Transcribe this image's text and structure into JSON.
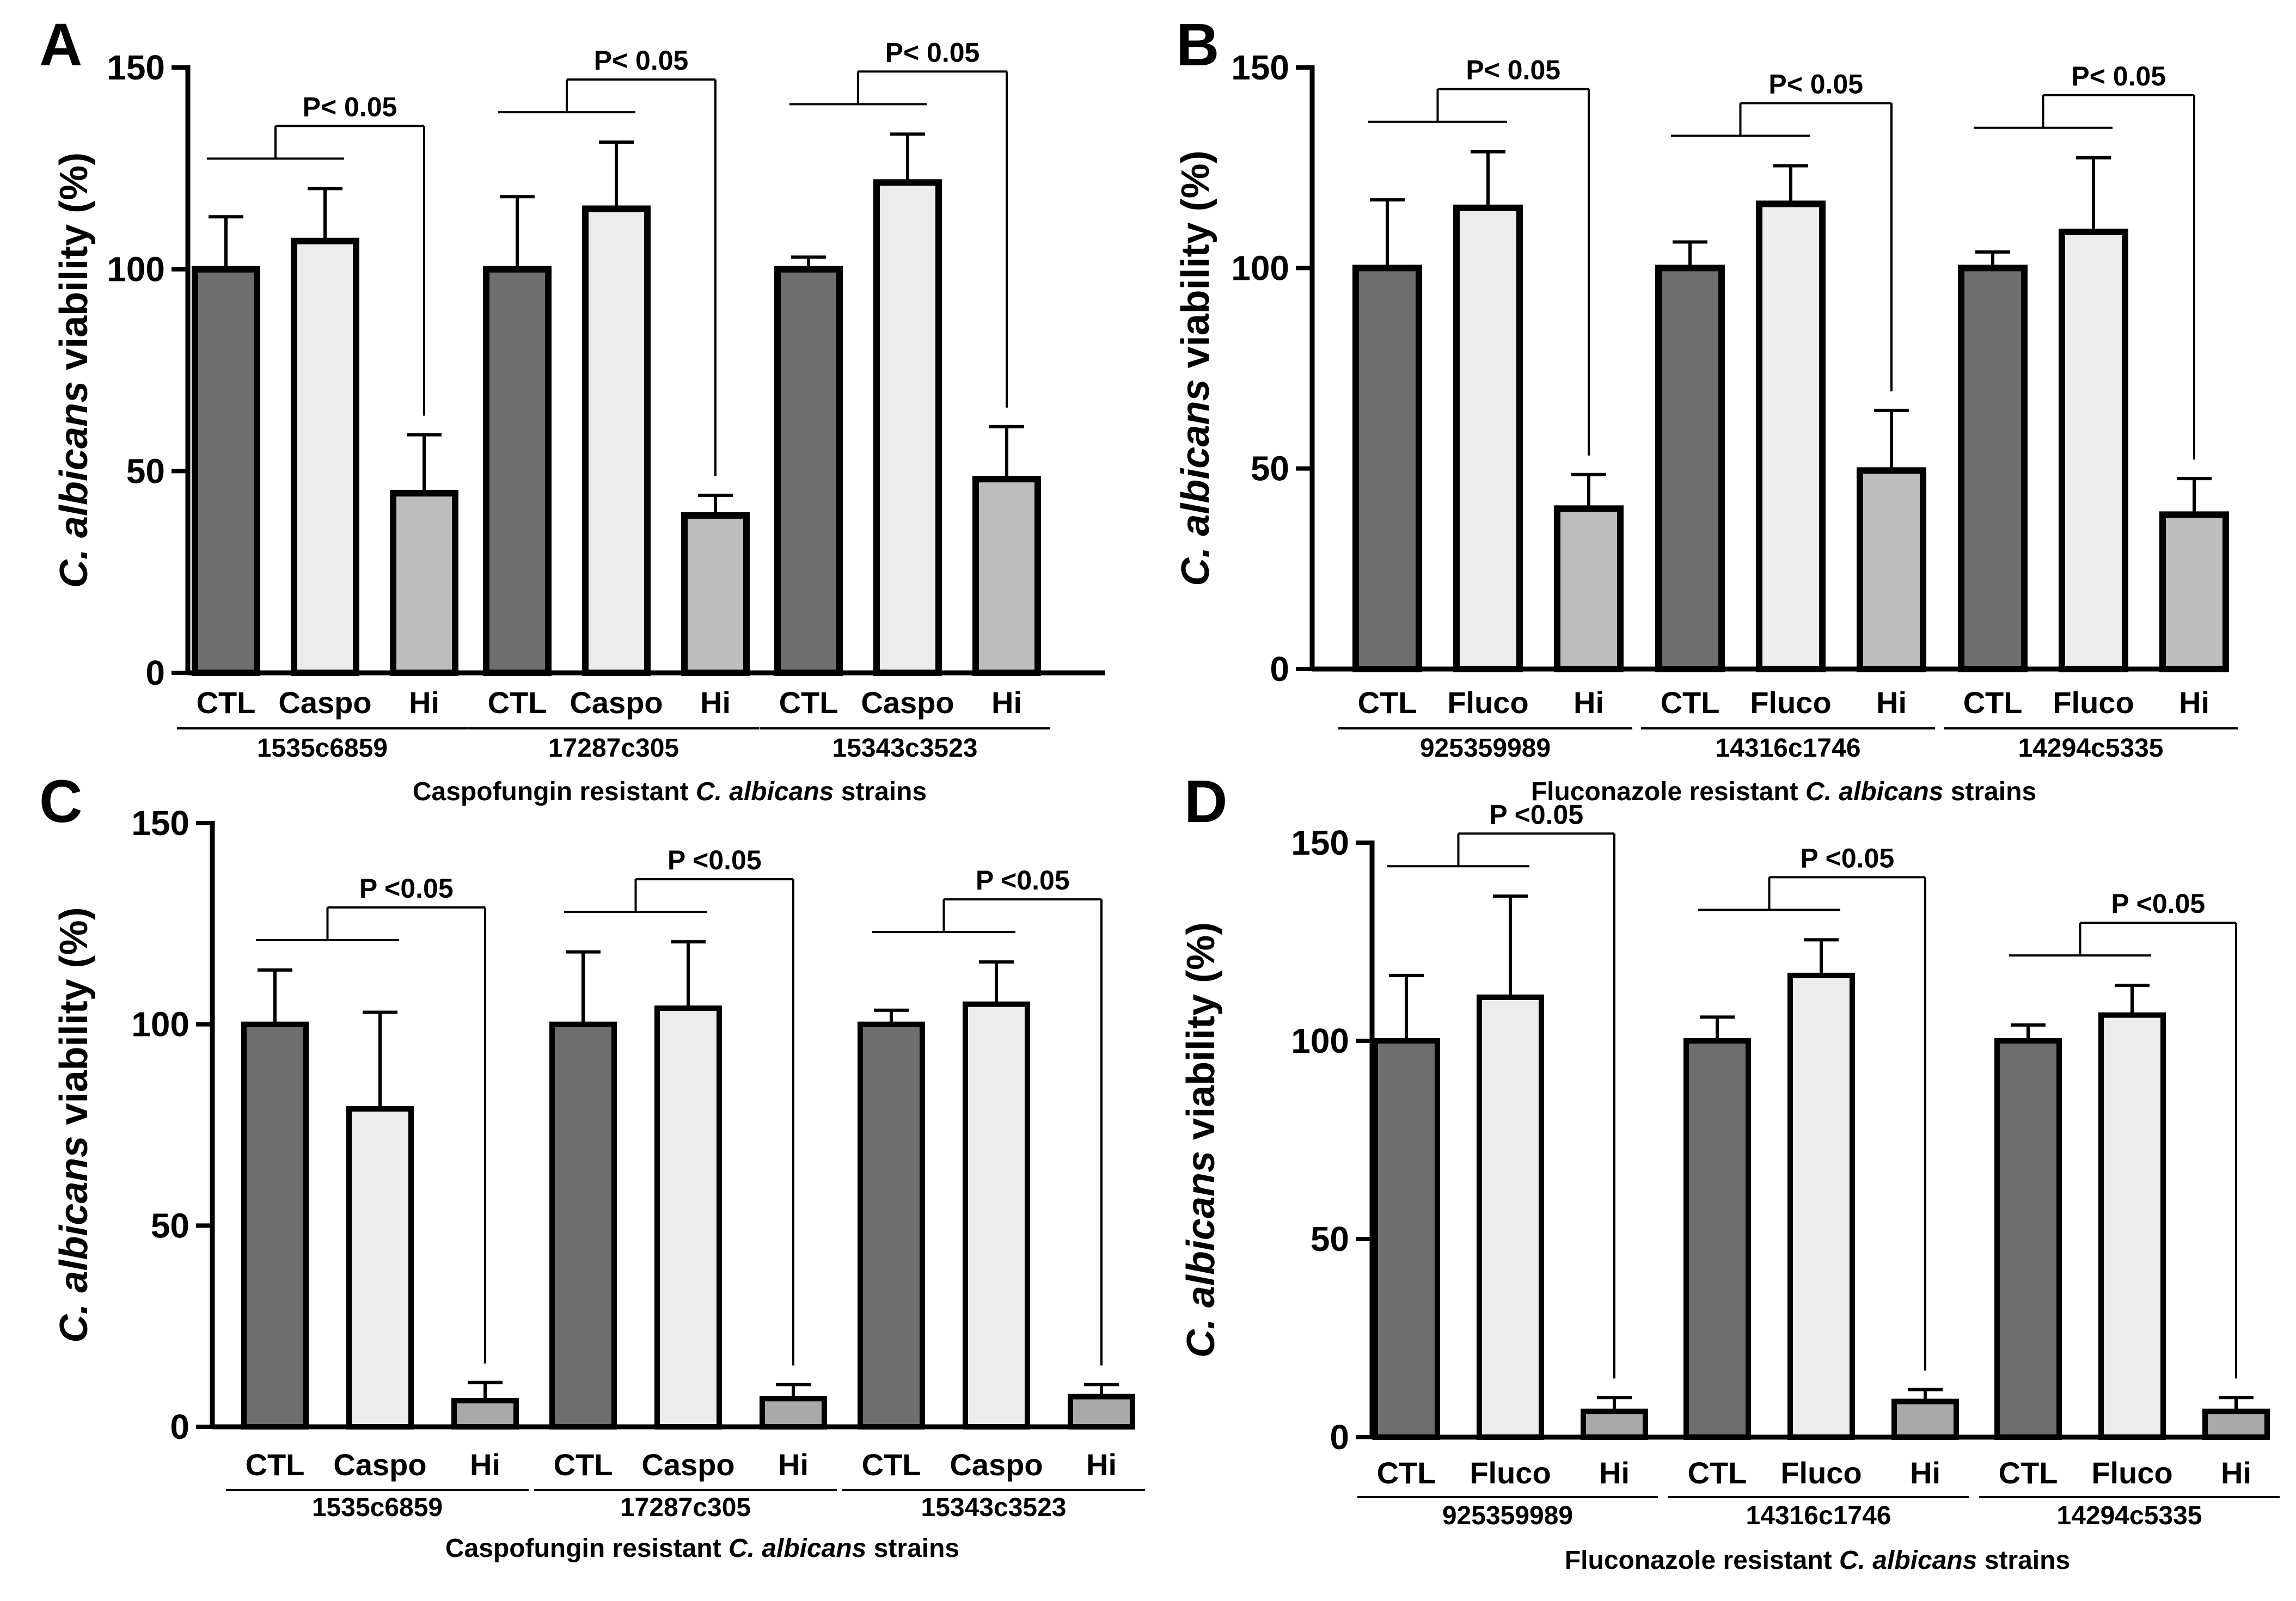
{
  "colors": {
    "ctl": "#6e6e6e",
    "treat": "#ececec",
    "hi": "#bdbdbd",
    "hi_cd": "#a9a9a9",
    "stroke": "#000000"
  },
  "chart_data": [
    {
      "panel": "A",
      "type": "bar",
      "ylabel": "C. albicans viability (%)",
      "ylim": [
        0,
        150
      ],
      "yticks": [
        "0",
        "50",
        "100",
        "150"
      ],
      "xlabel": "Caspofungin resistant C. albicans strains",
      "categories": [
        "CTL",
        "Caspo",
        "Hi"
      ],
      "groups": [
        {
          "name": "1535c6859",
          "values": [
            100,
            107,
            44.5
          ],
          "errors": [
            13,
            13,
            14.5
          ],
          "pvalue": "P< 0.05"
        },
        {
          "name": "17287c305",
          "values": [
            100,
            115,
            39
          ],
          "errors": [
            18,
            16.5,
            5
          ],
          "pvalue": "P< 0.05"
        },
        {
          "name": "15343c3523",
          "values": [
            100,
            121.5,
            48
          ],
          "errors": [
            3,
            12,
            13
          ],
          "pvalue": "P< 0.05"
        }
      ]
    },
    {
      "panel": "B",
      "type": "bar",
      "ylabel": "C. albicans viability (%)",
      "ylim": [
        0,
        150
      ],
      "yticks": [
        "0",
        "50",
        "100",
        "150"
      ],
      "xlabel": "Fluconazole resistant C. albicans strains",
      "categories": [
        "CTL",
        "Fluco",
        "Hi"
      ],
      "groups": [
        {
          "name": "925359989",
          "values": [
            100,
            115,
            40
          ],
          "errors": [
            17,
            14,
            8.5
          ],
          "pvalue": "P< 0.05"
        },
        {
          "name": "14316c1746",
          "values": [
            100,
            116,
            49.5
          ],
          "errors": [
            6.5,
            9.5,
            15
          ],
          "pvalue": "P< 0.05"
        },
        {
          "name": "14294c5335",
          "values": [
            100,
            109,
            38.5
          ],
          "errors": [
            4,
            18.5,
            9
          ],
          "pvalue": "P< 0.05"
        }
      ]
    },
    {
      "panel": "C",
      "type": "bar",
      "ylabel": "C. albicans viability (%)",
      "ylim": [
        0,
        150
      ],
      "yticks": [
        "0",
        "50",
        "100",
        "150"
      ],
      "xlabel": "Caspofungin resistant C. albicans strains",
      "categories": [
        "CTL",
        "Caspo",
        "Hi"
      ],
      "groups": [
        {
          "name": "1535c6859",
          "values": [
            100,
            79,
            6.5
          ],
          "errors": [
            13.5,
            24,
            4.5
          ],
          "pvalue": "P <0.05"
        },
        {
          "name": "17287c305",
          "values": [
            100,
            104,
            7
          ],
          "errors": [
            18,
            16.5,
            3.5
          ],
          "pvalue": "P <0.05"
        },
        {
          "name": "15343c3523",
          "values": [
            100,
            105,
            7.5
          ],
          "errors": [
            3.5,
            10.5,
            3
          ],
          "pvalue": "P <0.05"
        }
      ]
    },
    {
      "panel": "D",
      "type": "bar",
      "ylabel": "C. albicans viability (%)",
      "ylim": [
        0,
        150
      ],
      "yticks": [
        "0",
        "50",
        "100",
        "150"
      ],
      "xlabel": "Fluconazole resistant C. albicans strains",
      "categories": [
        "CTL",
        "Fluco",
        "Hi"
      ],
      "groups": [
        {
          "name": "925359989",
          "values": [
            100,
            111,
            6.5
          ],
          "errors": [
            16.5,
            25.5,
            3.5
          ],
          "pvalue": "P <0.05"
        },
        {
          "name": "14316c1746",
          "values": [
            100,
            116.5,
            9
          ],
          "errors": [
            6,
            9,
            3
          ],
          "pvalue": "P <0.05"
        },
        {
          "name": "14294c5335",
          "values": [
            100,
            106.5,
            6.5
          ],
          "errors": [
            4,
            7.5,
            3.5
          ],
          "pvalue": "P <0.05"
        }
      ]
    }
  ]
}
